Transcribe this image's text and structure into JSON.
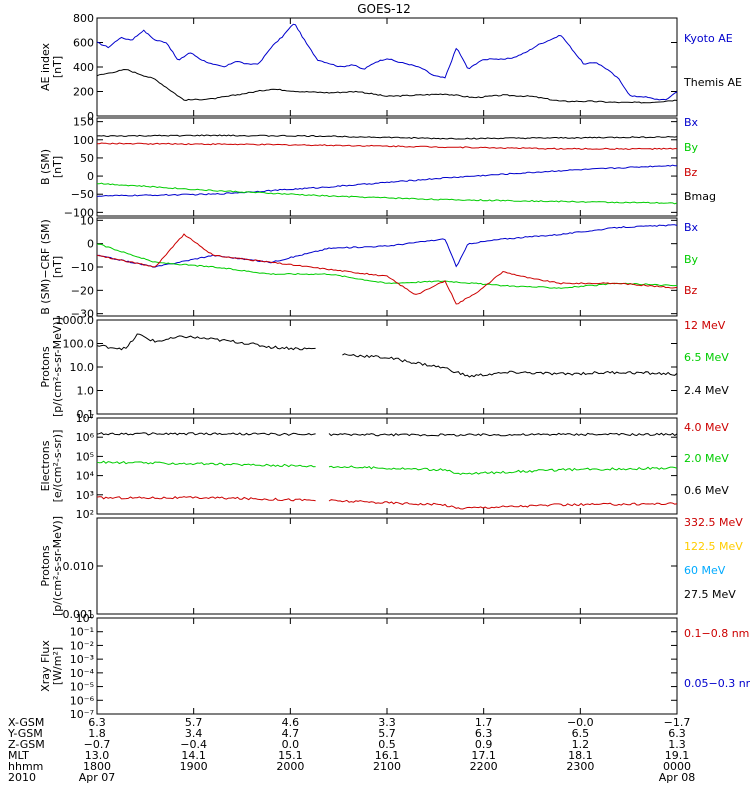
{
  "title": "GOES-12",
  "chart_data": [
    {
      "type": "line",
      "ylabel": "AE index\n[nT]",
      "ylim": [
        0,
        800
      ],
      "yscale": "linear",
      "ticks": [
        "800",
        "600",
        "400",
        "200",
        "0"
      ],
      "tick_values": [
        800,
        600,
        400,
        200,
        0
      ],
      "series": [
        {
          "name": "Kyoto AE",
          "color": "#0000cc",
          "x": [
            0,
            0.02,
            0.04,
            0.06,
            0.08,
            0.1,
            0.12,
            0.14,
            0.16,
            0.18,
            0.2,
            0.22,
            0.24,
            0.26,
            0.28,
            0.3,
            0.32,
            0.34,
            0.36,
            0.38,
            0.4,
            0.42,
            0.44,
            0.46,
            0.48,
            0.5,
            0.52,
            0.54,
            0.56,
            0.58,
            0.6,
            0.62,
            0.64,
            0.66,
            0.68,
            0.7,
            0.72,
            0.74,
            0.76,
            0.78,
            0.8,
            0.82,
            0.84,
            0.86,
            0.88,
            0.9,
            0.92,
            0.94,
            0.96,
            0.98,
            1.0
          ],
          "y": [
            600,
            560,
            640,
            620,
            700,
            620,
            600,
            450,
            520,
            460,
            420,
            400,
            450,
            420,
            430,
            560,
            650,
            760,
            600,
            460,
            430,
            400,
            420,
            380,
            440,
            470,
            440,
            420,
            390,
            330,
            310,
            560,
            380,
            450,
            470,
            460,
            480,
            520,
            580,
            620,
            660,
            540,
            420,
            440,
            380,
            300,
            160,
            160,
            140,
            130,
            200
          ]
        },
        {
          "name": "Themis AE",
          "color": "#000000",
          "x": [
            0,
            0.05,
            0.1,
            0.15,
            0.2,
            0.25,
            0.3,
            0.35,
            0.4,
            0.45,
            0.5,
            0.55,
            0.6,
            0.65,
            0.7,
            0.75,
            0.8,
            0.85,
            0.9,
            0.95,
            1.0
          ],
          "y": [
            330,
            380,
            300,
            130,
            140,
            180,
            220,
            200,
            190,
            200,
            160,
            170,
            180,
            150,
            170,
            160,
            120,
            120,
            110,
            110,
            130
          ]
        }
      ]
    },
    {
      "type": "line",
      "ylabel": "B (SM)\n[nT]",
      "ylim": [
        -110,
        160
      ],
      "yscale": "linear",
      "ticks": [
        "150",
        "100",
        "50",
        "0",
        "−50",
        "−100"
      ],
      "tick_values": [
        150,
        100,
        50,
        0,
        -50,
        -100
      ],
      "series": [
        {
          "name": "Bx",
          "color": "#0000cc",
          "x": [
            0,
            0.2,
            0.4,
            0.6,
            0.8,
            1.0
          ],
          "y": [
            -55,
            -50,
            -30,
            -5,
            15,
            30
          ]
        },
        {
          "name": "By",
          "color": "#00cc00",
          "x": [
            0,
            0.2,
            0.4,
            0.6,
            0.8,
            1.0
          ],
          "y": [
            -20,
            -40,
            -55,
            -65,
            -70,
            -75
          ]
        },
        {
          "name": "Bz",
          "color": "#cc0000",
          "x": [
            0,
            0.2,
            0.4,
            0.6,
            0.8,
            1.0
          ],
          "y": [
            90,
            88,
            85,
            80,
            75,
            75
          ]
        },
        {
          "name": "Bmag",
          "color": "#000000",
          "x": [
            0,
            0.2,
            0.4,
            0.6,
            0.8,
            1.0
          ],
          "y": [
            110,
            112,
            110,
            103,
            105,
            108
          ]
        }
      ]
    },
    {
      "type": "line",
      "ylabel": "B (SM)−CRF (SM)\n[nT]",
      "ylim": [
        -31,
        11
      ],
      "yscale": "linear",
      "ticks": [
        "10",
        "0",
        "−10",
        "−20",
        "−30"
      ],
      "tick_values": [
        10,
        0,
        -10,
        -20,
        -30
      ],
      "series": [
        {
          "name": "Bx",
          "color": "#0000cc",
          "x": [
            0,
            0.1,
            0.2,
            0.3,
            0.4,
            0.5,
            0.6,
            0.62,
            0.64,
            0.7,
            0.8,
            0.9,
            1.0
          ],
          "y": [
            -5,
            -10,
            -5,
            -8,
            -2,
            -1,
            2,
            -10,
            0,
            2,
            4,
            7,
            8
          ]
        },
        {
          "name": "By",
          "color": "#00cc00",
          "x": [
            0,
            0.1,
            0.2,
            0.3,
            0.4,
            0.5,
            0.6,
            0.7,
            0.8,
            0.9,
            1.0
          ],
          "y": [
            0,
            -8,
            -10,
            -13,
            -13,
            -17,
            -16,
            -18,
            -19,
            -17,
            -18
          ]
        },
        {
          "name": "Bz",
          "color": "#cc0000",
          "x": [
            0,
            0.1,
            0.15,
            0.2,
            0.3,
            0.4,
            0.5,
            0.55,
            0.6,
            0.62,
            0.66,
            0.7,
            0.75,
            0.8,
            0.9,
            1.0
          ],
          "y": [
            -5,
            -10,
            4,
            -5,
            -8,
            -11,
            -14,
            -22,
            -16,
            -26,
            -20,
            -12,
            -15,
            -17,
            -17,
            -19
          ]
        }
      ]
    },
    {
      "type": "line",
      "ylabel": "Protons\n[p/(cm²-s-sr-MeV)]",
      "ylim": [
        0.1,
        1000
      ],
      "yscale": "log",
      "ticks": [
        "1000.0",
        "100.0",
        "10.0",
        "1.0",
        "0.1"
      ],
      "tick_values": [
        1000,
        100,
        10,
        1,
        0.1
      ],
      "gap": [
        0.38,
        0.42
      ],
      "series": [
        {
          "name": "12 MeV",
          "color": "#cc0000",
          "x": [],
          "y": []
        },
        {
          "name": "6.5 MeV",
          "color": "#00cc00",
          "x": [],
          "y": []
        },
        {
          "name": "2.4 MeV",
          "color": "#000000",
          "x": [
            0,
            0.05,
            0.07,
            0.1,
            0.15,
            0.2,
            0.25,
            0.3,
            0.35,
            0.38,
            0.42,
            0.5,
            0.55,
            0.6,
            0.62,
            0.64,
            0.68,
            0.72,
            0.8,
            0.9,
            1.0
          ],
          "y": [
            80,
            60,
            250,
            120,
            200,
            150,
            110,
            70,
            60,
            60,
            35,
            25,
            15,
            9,
            6,
            4,
            5,
            6,
            5,
            6,
            5
          ]
        }
      ]
    },
    {
      "type": "line",
      "ylabel": "Electrons\n[e/(cm²-s-sr)]",
      "ylim": [
        100,
        10000000
      ],
      "yscale": "log",
      "ticks": [
        "10⁷",
        "10⁶",
        "10⁵",
        "10⁴",
        "10³",
        "10²"
      ],
      "tick_values": [
        10000000,
        1000000,
        100000,
        10000,
        1000,
        100
      ],
      "gap": [
        0.38,
        0.4
      ],
      "series": [
        {
          "name": "4.0 MeV",
          "color": "#cc0000",
          "x": [
            0,
            0.2,
            0.4,
            0.6,
            0.62,
            0.8,
            1.0
          ],
          "y": [
            700,
            700,
            500,
            300,
            200,
            300,
            350
          ]
        },
        {
          "name": "2.0 MeV",
          "color": "#00cc00",
          "x": [
            0,
            0.2,
            0.4,
            0.6,
            0.62,
            0.8,
            1.0
          ],
          "y": [
            50000,
            40000,
            30000,
            20000,
            12000,
            20000,
            25000
          ]
        },
        {
          "name": "0.6 MeV",
          "color": "#000000",
          "x": [
            0,
            0.2,
            0.4,
            0.6,
            0.8,
            1.0
          ],
          "y": [
            1500000,
            1500000,
            1400000,
            1300000,
            1400000,
            1400000
          ]
        }
      ]
    },
    {
      "type": "line",
      "ylabel": "Protons\n[p/(cm²-s-sr-MeV)]",
      "ylim": [
        0.001,
        0.1
      ],
      "yscale": "log",
      "ticks": [
        "0.010",
        "0.001"
      ],
      "tick_values": [
        0.01,
        0.001
      ],
      "gap": [
        0.38,
        0.42
      ],
      "series": [
        {
          "name": "332.5 MeV",
          "color": "#cc0000",
          "x": [],
          "y": []
        },
        {
          "name": "122.5 MeV",
          "color": "#ffcc00",
          "x": [],
          "y": []
        },
        {
          "name": "60 MeV",
          "color": "#00aaff",
          "x": [],
          "y": []
        },
        {
          "name": "27.5 MeV",
          "color": "#000000",
          "x": [],
          "y": []
        }
      ]
    },
    {
      "type": "line",
      "ylabel": "Xray Flux\n[W/m²]",
      "ylim": [
        1e-07,
        1
      ],
      "yscale": "log",
      "ticks": [
        "10⁰",
        "10⁻¹",
        "10⁻²",
        "10⁻³",
        "10⁻⁴",
        "10⁻⁵",
        "10⁻⁶",
        "10⁻⁷"
      ],
      "tick_values": [
        1,
        0.1,
        0.01,
        0.001,
        0.0001,
        1e-05,
        1e-06,
        1e-07
      ],
      "series": [
        {
          "name": "0.1−0.8 nm",
          "color": "#cc0000",
          "x": [],
          "y": []
        },
        {
          "name": "0.05−0.3 nm",
          "color": "#0000cc",
          "x": [],
          "y": []
        }
      ]
    }
  ],
  "x_axis": {
    "rows": [
      {
        "label": "X-GSM",
        "values": [
          "6.3",
          "5.7",
          "4.6",
          "3.3",
          "1.7",
          "−0.0",
          "−1.7"
        ]
      },
      {
        "label": "Y-GSM",
        "values": [
          "1.8",
          "3.4",
          "4.7",
          "5.7",
          "6.3",
          "6.5",
          "6.3"
        ]
      },
      {
        "label": "Z-GSM",
        "values": [
          "−0.7",
          "−0.4",
          "0.0",
          "0.5",
          "0.9",
          "1.2",
          "1.3"
        ]
      },
      {
        "label": "MLT",
        "values": [
          "13.0",
          "14.1",
          "15.1",
          "16.1",
          "17.1",
          "18.1",
          "19.1"
        ]
      },
      {
        "label": "hhmm",
        "values": [
          "1800",
          "1900",
          "2000",
          "2100",
          "2200",
          "2300",
          "0000"
        ]
      },
      {
        "label": "2010",
        "values": [
          "Apr 07",
          "",
          "",
          "",
          "",
          "",
          "Apr 08"
        ]
      }
    ]
  }
}
